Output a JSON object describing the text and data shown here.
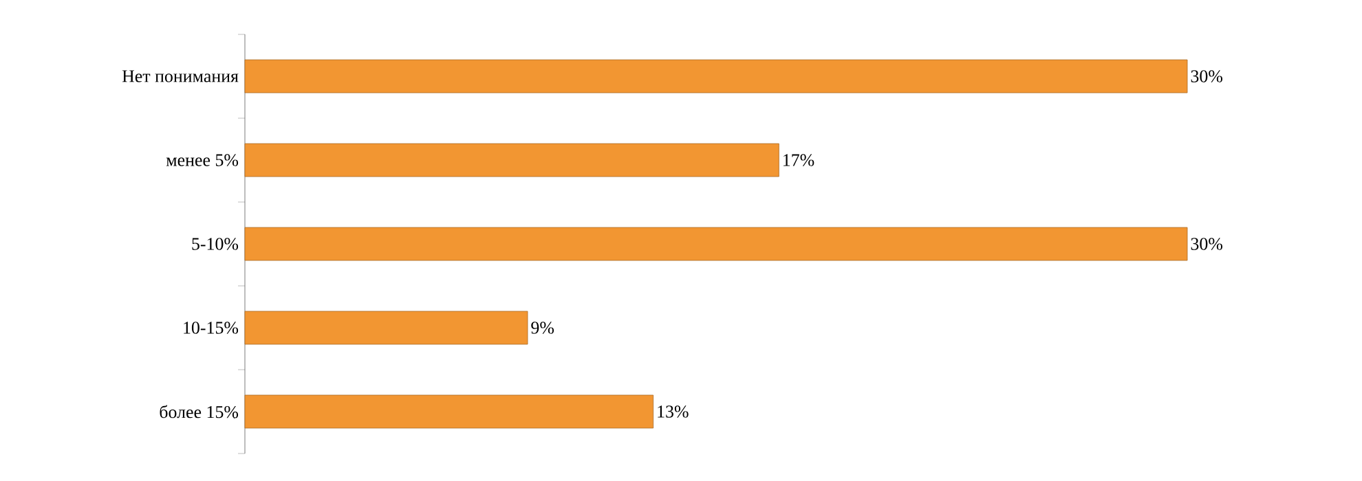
{
  "chart_data": {
    "type": "bar",
    "orientation": "horizontal",
    "categories": [
      "Нет понимания",
      "менее 5%",
      "5-10%",
      "10-15%",
      "более 15%"
    ],
    "values": [
      30,
      17,
      30,
      9,
      13
    ],
    "value_labels": [
      "30%",
      "17%",
      "30%",
      "9%",
      "13%"
    ],
    "color": "#f29632"
  }
}
